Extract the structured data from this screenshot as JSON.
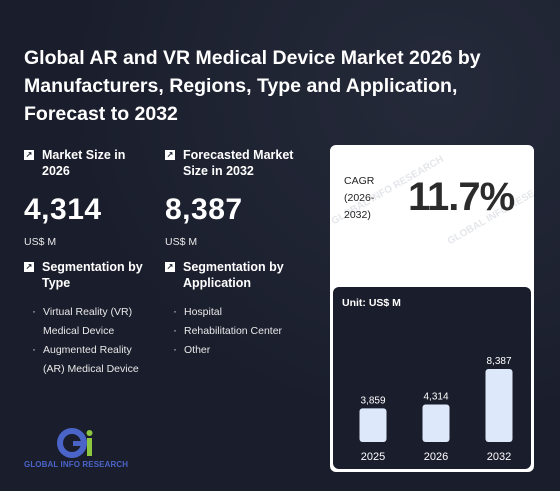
{
  "title": "Global AR and VR Medical Device Market 2026 by Manufacturers, Regions, Type and Application, Forecast to 2032",
  "market_size": {
    "label": "Market Size in 2026",
    "value": "4,314",
    "unit": "US$ M"
  },
  "forecast": {
    "label": "Forecasted Market Size in 2032",
    "value": "8,387",
    "unit": "US$ M"
  },
  "seg_type": {
    "label": "Segmentation by Type",
    "items": [
      "Virtual Reality (VR) Medical Device",
      "Augmented Reality (AR) Medical Device"
    ]
  },
  "seg_app": {
    "label": "Segmentation by Application",
    "items": [
      "Hospital",
      "Rehabilitation Center",
      "Other"
    ]
  },
  "cagr": {
    "label": "CAGR (2026-2032)",
    "value": "11.7%"
  },
  "logo": {
    "mark": "Gi",
    "text": "GLOBAL INFO RESEARCH"
  },
  "watermark": "GLOBAL INFO RESEARCH",
  "icon": "external-link-icon",
  "colors": {
    "background": "#1a1e2c",
    "bar": "#dde9fb",
    "logo_blue": "#4a64c8",
    "logo_green": "#8dc63f"
  },
  "chart_data": {
    "type": "bar",
    "unit_label": "Unit: US$ M",
    "categories": [
      "2025",
      "2026",
      "2032"
    ],
    "values": [
      3859,
      4314,
      8387
    ],
    "value_labels": [
      "3,859",
      "4,314",
      "8,387"
    ],
    "ylim": [
      0,
      8387
    ],
    "grid": false
  }
}
